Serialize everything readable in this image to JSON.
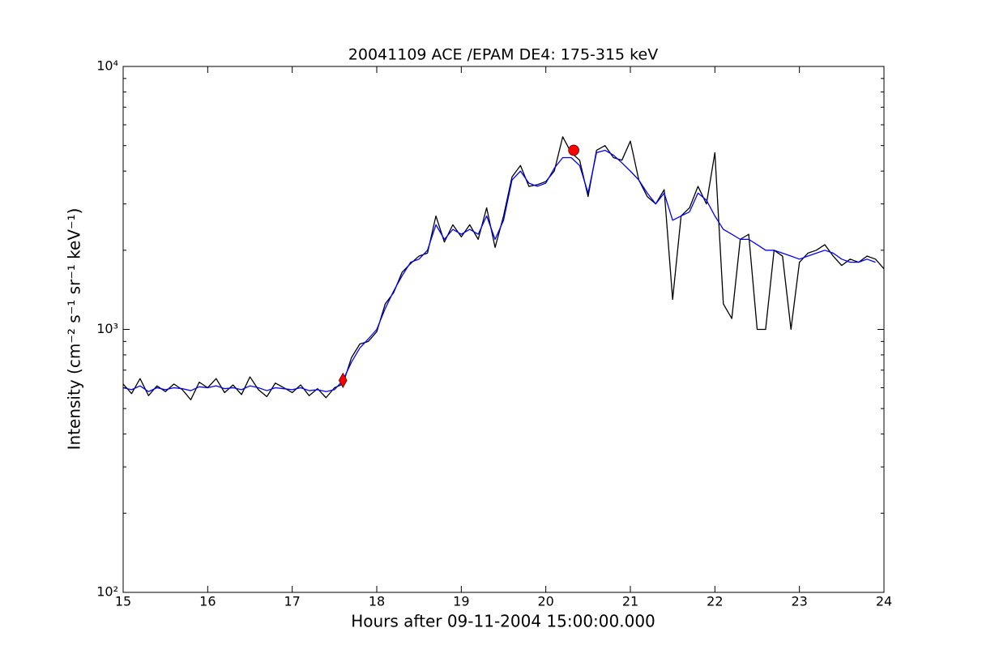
{
  "chart_data": {
    "type": "line",
    "title": "20041109 ACE /EPAM DE4: 175-315 keV",
    "xlabel": "Hours after 09-11-2004 15:00:00.000",
    "ylabel": "Intensity (cm⁻² s⁻¹ sr⁻¹ keV⁻¹)",
    "yscale": "log",
    "xlim": [
      15,
      24
    ],
    "ylim": [
      100,
      10000
    ],
    "xticks": [
      15,
      16,
      17,
      18,
      19,
      20,
      21,
      22,
      23,
      24
    ],
    "yticks": [
      {
        "value": 100,
        "label": "10²"
      },
      {
        "value": 1000,
        "label": "10³"
      },
      {
        "value": 10000,
        "label": "10⁴"
      }
    ],
    "x": [
      15.0,
      15.1,
      15.2,
      15.3,
      15.4,
      15.5,
      15.6,
      15.7,
      15.8,
      15.9,
      16.0,
      16.1,
      16.2,
      16.3,
      16.4,
      16.5,
      16.6,
      16.7,
      16.8,
      16.9,
      17.0,
      17.1,
      17.2,
      17.3,
      17.4,
      17.5,
      17.6,
      17.7,
      17.8,
      17.9,
      18.0,
      18.1,
      18.2,
      18.3,
      18.4,
      18.5,
      18.6,
      18.7,
      18.8,
      18.9,
      19.0,
      19.1,
      19.2,
      19.3,
      19.4,
      19.5,
      19.6,
      19.7,
      19.8,
      19.9,
      20.0,
      20.1,
      20.2,
      20.3,
      20.4,
      20.5,
      20.6,
      20.7,
      20.8,
      20.9,
      21.0,
      21.1,
      21.2,
      21.3,
      21.4,
      21.5,
      21.6,
      21.7,
      21.8,
      21.9,
      22.0,
      22.1,
      22.2,
      22.3,
      22.4,
      22.5,
      22.6,
      22.7,
      22.8,
      22.9,
      23.0,
      23.1,
      23.2,
      23.3,
      23.4,
      23.5,
      23.6,
      23.7,
      23.8,
      23.9,
      24.0
    ],
    "series": [
      {
        "color": "#000000",
        "values": [
          620,
          570,
          650,
          560,
          610,
          580,
          620,
          590,
          540,
          630,
          600,
          650,
          575,
          615,
          565,
          660,
          590,
          555,
          625,
          600,
          575,
          615,
          560,
          595,
          550,
          600,
          620,
          780,
          880,
          900,
          980,
          1250,
          1380,
          1650,
          1780,
          1900,
          1950,
          2700,
          2150,
          2500,
          2250,
          2500,
          2200,
          2900,
          2050,
          2700,
          3800,
          4200,
          3500,
          3550,
          3650,
          4000,
          5400,
          4700,
          4400,
          3200,
          4800,
          5000,
          4500,
          4400,
          5200,
          3700,
          3200,
          3000,
          3400,
          1300,
          2700,
          2900,
          3500,
          3000,
          4700,
          1250,
          1100,
          2200,
          2300,
          1000,
          1000,
          2000,
          1900,
          1000,
          1800,
          1950,
          2000,
          2100,
          1900,
          1750,
          1850,
          1800,
          1900,
          1850,
          1700
        ]
      },
      {
        "color": "#0000ff",
        "values": [
          600,
          590,
          610,
          580,
          600,
          590,
          600,
          595,
          585,
          605,
          600,
          610,
          595,
          600,
          590,
          610,
          600,
          585,
          600,
          595,
          590,
          600,
          585,
          590,
          580,
          590,
          640,
          750,
          850,
          920,
          1000,
          1200,
          1400,
          1600,
          1800,
          1850,
          2000,
          2500,
          2200,
          2400,
          2300,
          2400,
          2300,
          2700,
          2200,
          2600,
          3700,
          4000,
          3600,
          3500,
          3600,
          4100,
          4500,
          4500,
          4200,
          3300,
          4700,
          4800,
          4600,
          4300,
          4000,
          3700,
          3300,
          3000,
          3300,
          2600,
          2700,
          2800,
          3300,
          3100,
          2700,
          2400,
          2300,
          2200,
          2200,
          2100,
          2000,
          2000,
          1950,
          1900,
          1850,
          1900,
          1950,
          2000,
          1950,
          1850,
          1800,
          1800,
          1850,
          1800,
          null
        ]
      }
    ],
    "points": [
      {
        "x": 17.6,
        "y": 640,
        "marker": "diamond",
        "color": "#ff0000"
      },
      {
        "x": 20.33,
        "y": 4800,
        "marker": "circle",
        "color": "#ff0000"
      }
    ]
  }
}
